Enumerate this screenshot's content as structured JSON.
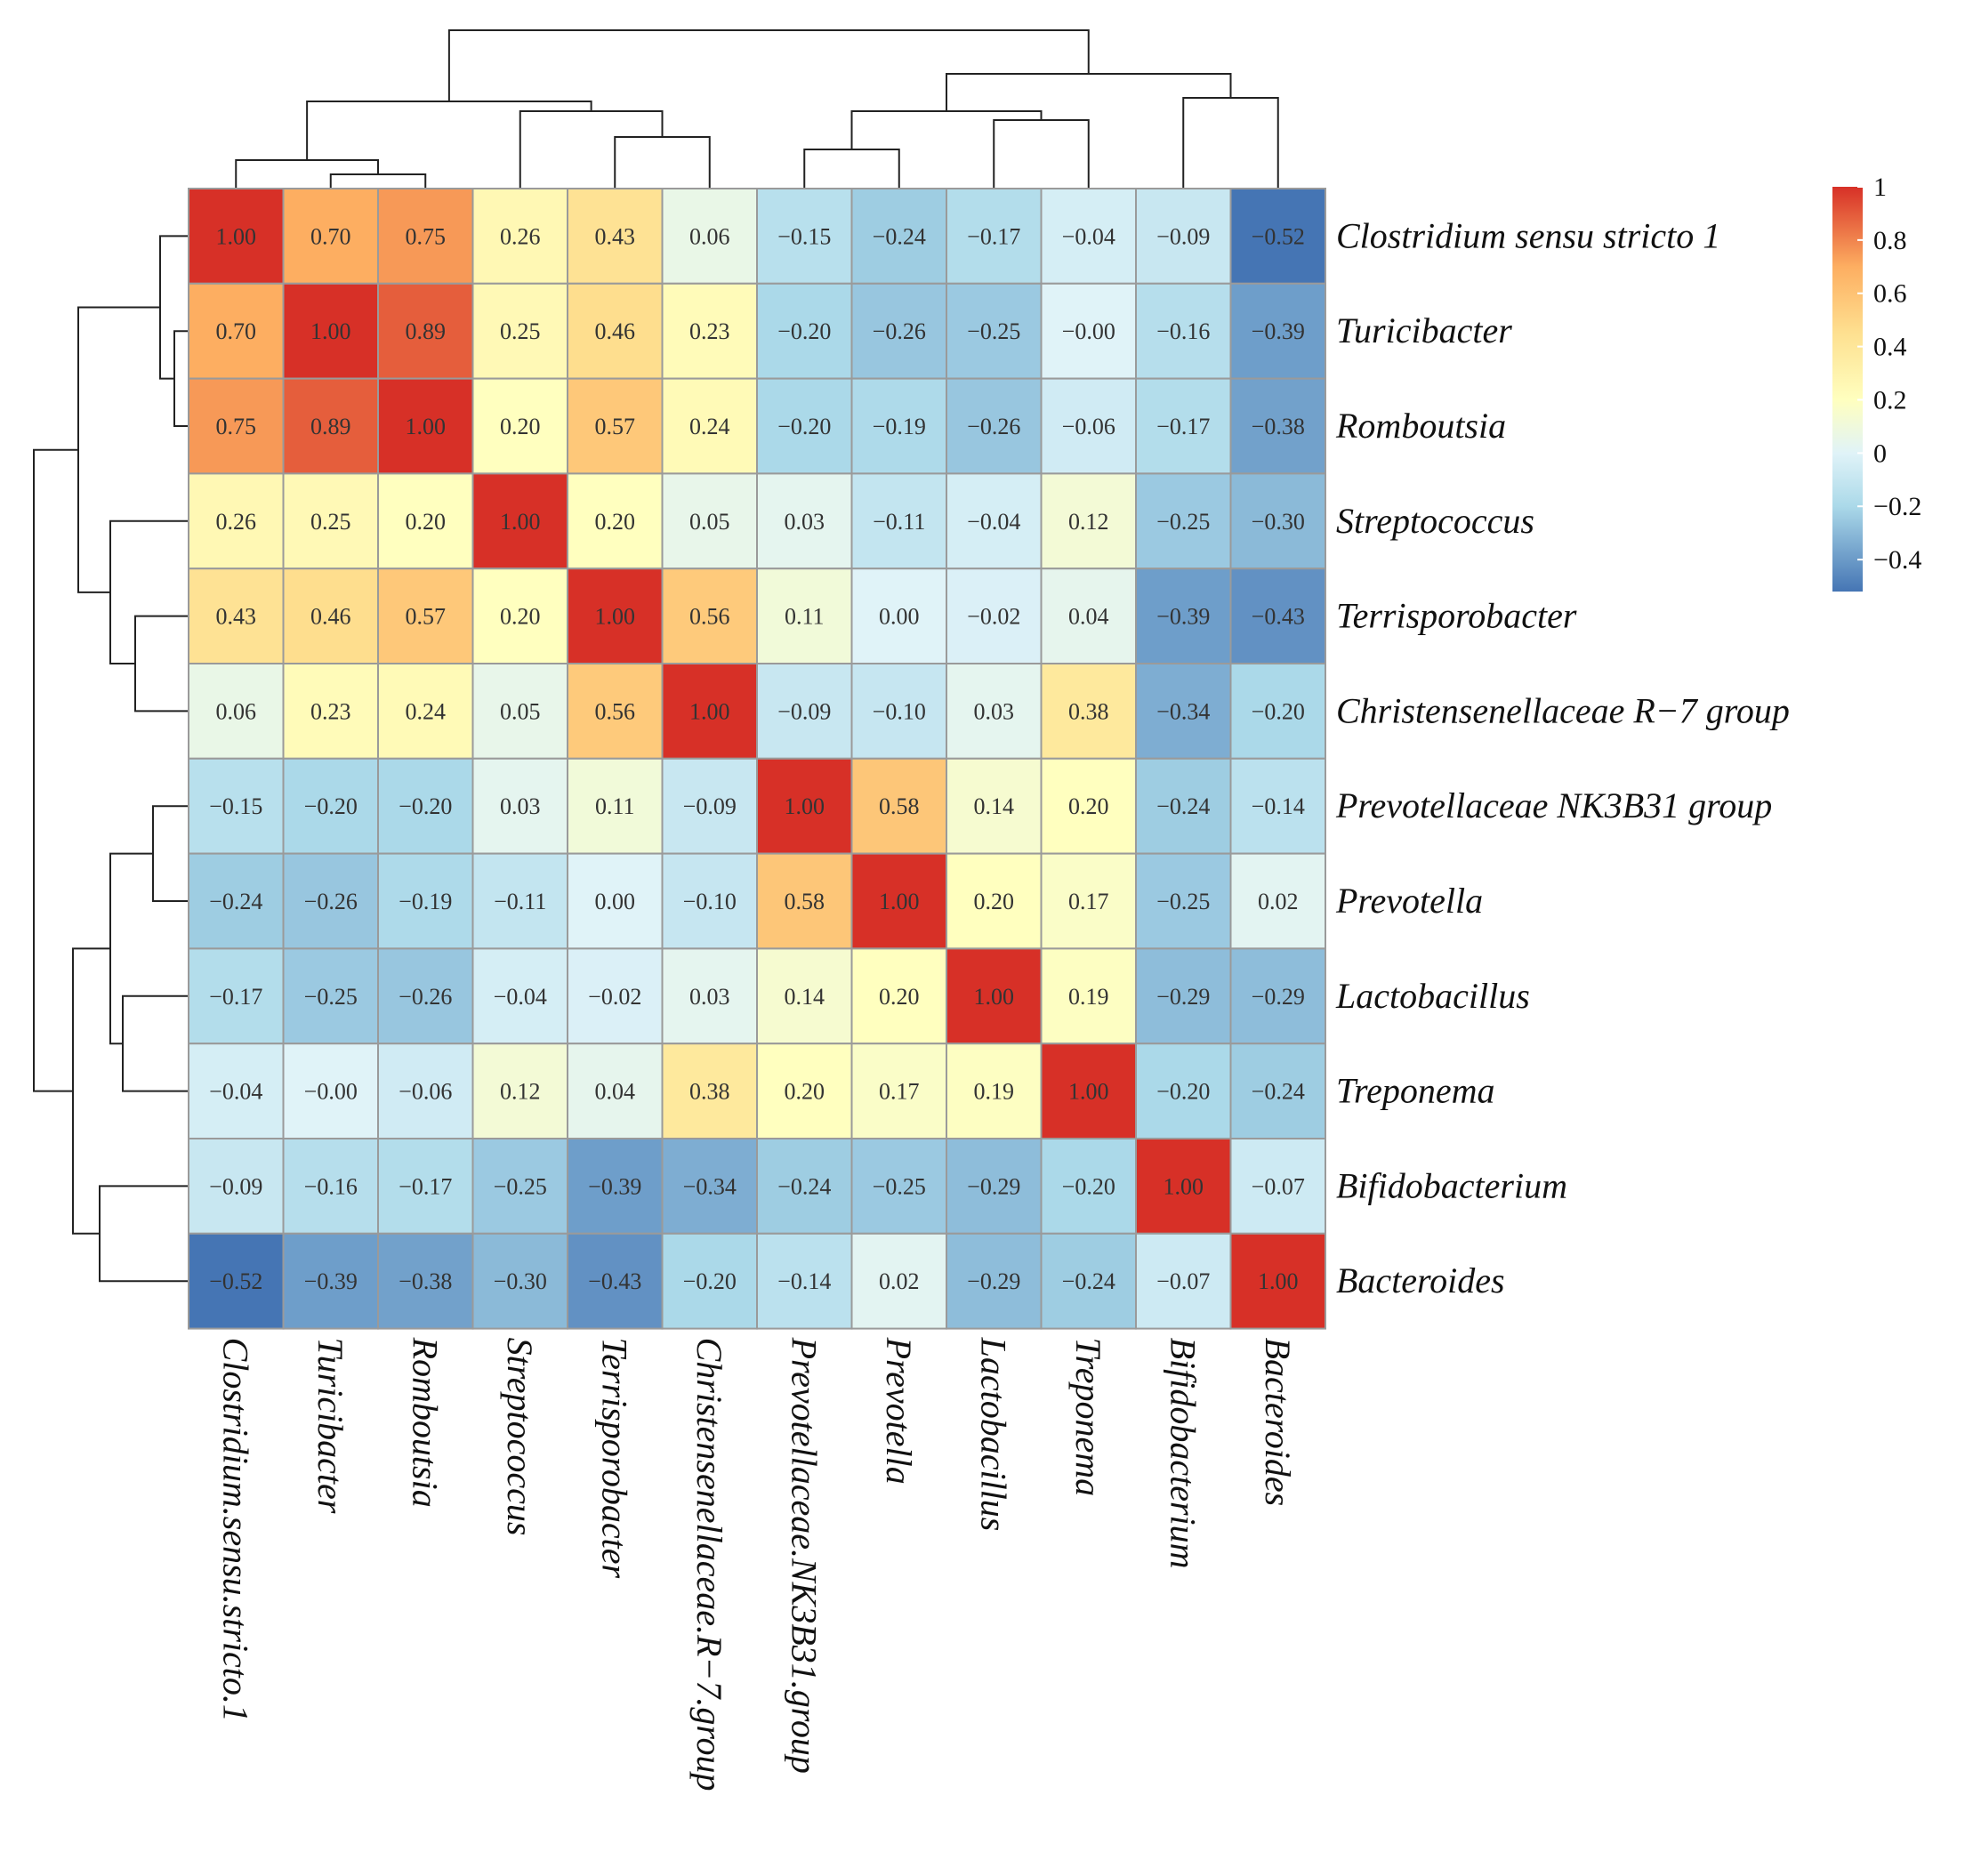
{
  "chart_data": {
    "type": "heatmap",
    "title": "",
    "row_labels": [
      "Clostridium sensu stricto 1",
      "Turicibacter",
      "Romboutsia",
      "Streptococcus",
      "Terrisporobacter",
      "Christensenellaceae R−7 group",
      "Prevotellaceae NK3B31 group",
      "Prevotella",
      "Lactobacillus",
      "Treponema",
      "Bifidobacterium",
      "Bacteroides"
    ],
    "col_labels": [
      "Clostridium.sensu.stricto.1",
      "Turicibacter",
      "Romboutsia",
      "Streptococcus",
      "Terrisporobacter",
      "Christensenellaceae.R−7.group",
      "Prevotellaceae.NK3B31.group",
      "Prevotella",
      "Lactobacillus",
      "Treponema",
      "Bifidobacterium",
      "Bacteroides"
    ],
    "values": [
      [
        1.0,
        0.7,
        0.75,
        0.26,
        0.43,
        0.06,
        -0.15,
        -0.24,
        -0.17,
        -0.04,
        -0.09,
        -0.52
      ],
      [
        0.7,
        1.0,
        0.89,
        0.25,
        0.46,
        0.23,
        -0.2,
        -0.26,
        -0.25,
        -0.0,
        -0.16,
        -0.39
      ],
      [
        0.75,
        0.89,
        1.0,
        0.2,
        0.57,
        0.24,
        -0.2,
        -0.19,
        -0.26,
        -0.06,
        -0.17,
        -0.38
      ],
      [
        0.26,
        0.25,
        0.2,
        1.0,
        0.2,
        0.05,
        0.03,
        -0.11,
        -0.04,
        0.12,
        -0.25,
        -0.3
      ],
      [
        0.43,
        0.46,
        0.57,
        0.2,
        1.0,
        0.56,
        0.11,
        0.0,
        -0.02,
        0.04,
        -0.39,
        -0.43
      ],
      [
        0.06,
        0.23,
        0.24,
        0.05,
        0.56,
        1.0,
        -0.09,
        -0.1,
        0.03,
        0.38,
        -0.34,
        -0.2
      ],
      [
        -0.15,
        -0.2,
        -0.2,
        0.03,
        0.11,
        -0.09,
        1.0,
        0.58,
        0.14,
        0.2,
        -0.24,
        -0.14
      ],
      [
        -0.24,
        -0.26,
        -0.19,
        -0.11,
        0.0,
        -0.1,
        0.58,
        1.0,
        0.2,
        0.17,
        -0.25,
        0.02
      ],
      [
        -0.17,
        -0.25,
        -0.26,
        -0.04,
        -0.02,
        0.03,
        0.14,
        0.2,
        1.0,
        0.19,
        -0.29,
        -0.29
      ],
      [
        -0.04,
        -0.0,
        -0.06,
        0.12,
        0.04,
        0.38,
        0.2,
        0.17,
        0.19,
        1.0,
        -0.2,
        -0.24
      ],
      [
        -0.09,
        -0.16,
        -0.17,
        -0.25,
        -0.39,
        -0.34,
        -0.24,
        -0.25,
        -0.29,
        -0.2,
        1.0,
        -0.07
      ],
      [
        -0.52,
        -0.39,
        -0.38,
        -0.3,
        -0.43,
        -0.2,
        -0.14,
        0.02,
        -0.29,
        -0.24,
        -0.07,
        1.0
      ]
    ],
    "value_labels": [
      [
        "1.00",
        "0.70",
        "0.75",
        "0.26",
        "0.43",
        "0.06",
        "−0.15",
        "−0.24",
        "−0.17",
        "−0.04",
        "−0.09",
        "−0.52"
      ],
      [
        "0.70",
        "1.00",
        "0.89",
        "0.25",
        "0.46",
        "0.23",
        "−0.20",
        "−0.26",
        "−0.25",
        "−0.00",
        "−0.16",
        "−0.39"
      ],
      [
        "0.75",
        "0.89",
        "1.00",
        "0.20",
        "0.57",
        "0.24",
        "−0.20",
        "−0.19",
        "−0.26",
        "−0.06",
        "−0.17",
        "−0.38"
      ],
      [
        "0.26",
        "0.25",
        "0.20",
        "1.00",
        "0.20",
        "0.05",
        "0.03",
        "−0.11",
        "−0.04",
        "0.12",
        "−0.25",
        "−0.30"
      ],
      [
        "0.43",
        "0.46",
        "0.57",
        "0.20",
        "1.00",
        "0.56",
        "0.11",
        "0.00",
        "−0.02",
        "0.04",
        "−0.39",
        "−0.43"
      ],
      [
        "0.06",
        "0.23",
        "0.24",
        "0.05",
        "0.56",
        "1.00",
        "−0.09",
        "−0.10",
        "0.03",
        "0.38",
        "−0.34",
        "−0.20"
      ],
      [
        "−0.15",
        "−0.20",
        "−0.20",
        "0.03",
        "0.11",
        "−0.09",
        "1.00",
        "0.58",
        "0.14",
        "0.20",
        "−0.24",
        "−0.14"
      ],
      [
        "−0.24",
        "−0.26",
        "−0.19",
        "−0.11",
        "0.00",
        "−0.10",
        "0.58",
        "1.00",
        "0.20",
        "0.17",
        "−0.25",
        "0.02"
      ],
      [
        "−0.17",
        "−0.25",
        "−0.26",
        "−0.04",
        "−0.02",
        "0.03",
        "0.14",
        "0.20",
        "1.00",
        "0.19",
        "−0.29",
        "−0.29"
      ],
      [
        "−0.04",
        "−0.00",
        "−0.06",
        "0.12",
        "0.04",
        "0.38",
        "0.20",
        "0.17",
        "0.19",
        "1.00",
        "−0.20",
        "−0.24"
      ],
      [
        "−0.09",
        "−0.16",
        "−0.17",
        "−0.25",
        "−0.39",
        "−0.34",
        "−0.24",
        "−0.25",
        "−0.29",
        "−0.20",
        "1.00",
        "−0.07"
      ],
      [
        "−0.52",
        "−0.39",
        "−0.38",
        "−0.30",
        "−0.43",
        "−0.20",
        "−0.14",
        "0.02",
        "−0.29",
        "−0.24",
        "−0.07",
        "1.00"
      ]
    ],
    "colorbar": {
      "range": [
        -0.52,
        1.0
      ],
      "ticks": [
        1,
        0.8,
        0.6,
        0.4,
        0.2,
        0,
        -0.2,
        -0.4
      ],
      "tick_labels": [
        "1",
        "0.8",
        "0.6",
        "0.4",
        "0.2",
        "0",
        "−0.2",
        "−0.4"
      ],
      "colors": [
        "#4575b4",
        "#abd9e9",
        "#e0f3f8",
        "#ffffbf",
        "#fee090",
        "#fdae61",
        "#d73027"
      ],
      "color_stops": [
        -0.52,
        -0.2,
        0.0,
        0.2,
        0.45,
        0.7,
        1.0
      ]
    },
    "row_dendrogram": true,
    "col_dendrogram": true,
    "legend_position": "right"
  }
}
